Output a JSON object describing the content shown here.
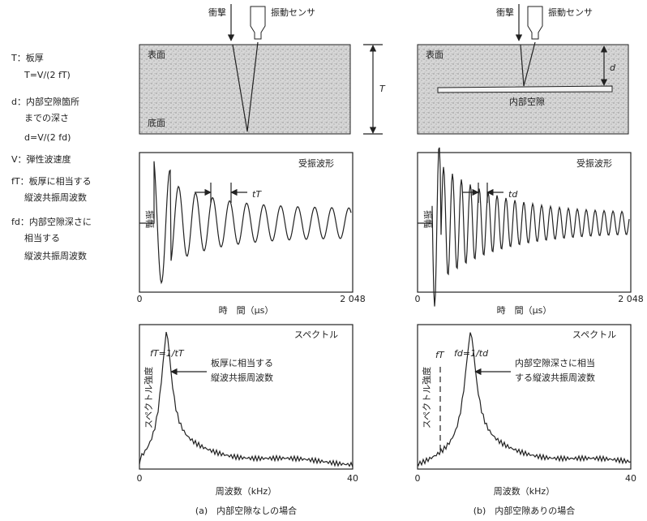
{
  "legend": [
    "T：板厚",
    "T=V/(2 fT)",
    "d：内部空隙箇所",
    "までの深さ",
    "d=V/(2 fd)",
    "V：弾性波速度",
    "fT：板厚に相当する",
    "縦波共振周波数",
    "fd：内部空隙深さに",
    "相当する",
    "縦波共振周波数"
  ],
  "panels": [
    {
      "impact": "衝撃",
      "sensor": "振動センサ",
      "surface": "表面",
      "bottom": "底面",
      "depth": "T",
      "waveform_title": "受振波形",
      "amplitude": "振幅",
      "period": "tT",
      "time_ticks": [
        "0",
        "2 048"
      ],
      "time_label": "時　間（μs）",
      "spectrum_title": "スペクトル",
      "intensity": "スペクトル強度",
      "peak": "fT=1/tT",
      "arrow_note": [
        "板厚に相当する",
        "縦波共振周波数"
      ],
      "freq_ticks": [
        "0",
        "40"
      ],
      "freq_label": "周波数（kHz）",
      "caption": "(a)　内部空隙なしの場合"
    },
    {
      "impact": "衝撃",
      "sensor": "振動センサ",
      "surface": "表面",
      "void": "内部空隙",
      "depth": "d",
      "waveform_title": "受振波形",
      "amplitude": "振幅",
      "period": "td",
      "time_ticks": [
        "0",
        "2 048"
      ],
      "time_label": "時　間（μs）",
      "spectrum_title": "スペクトル",
      "intensity": "スペクトル強度",
      "marker": "fT",
      "peak": "fd=1/td",
      "arrow_note": [
        "内部空隙深さに相当",
        "する縦波共振周波数"
      ],
      "freq_ticks": [
        "0",
        "40"
      ],
      "freq_label": "周波数（kHz）",
      "caption": "(b)　内部空隙ありの場合"
    }
  ]
}
